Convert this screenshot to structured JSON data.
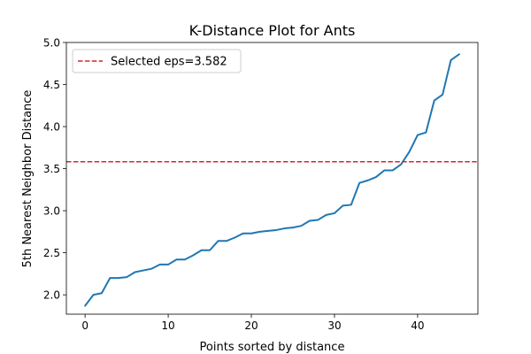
{
  "chart_data": {
    "type": "line",
    "title": "K-Distance Plot for Ants",
    "xlabel": "Points sorted by distance",
    "ylabel": "5th Nearest Neighbor Distance",
    "xlim": [
      -2.25,
      47.25
    ],
    "ylim": [
      1.77,
      5.0
    ],
    "xticks": [
      0,
      10,
      20,
      30,
      40
    ],
    "yticks": [
      2.0,
      2.5,
      3.0,
      3.5,
      4.0,
      4.5,
      5.0
    ],
    "xtick_labels": [
      "0",
      "10",
      "20",
      "30",
      "40"
    ],
    "ytick_labels": [
      "2.0",
      "2.5",
      "3.0",
      "3.5",
      "4.0",
      "4.5",
      "5.0"
    ],
    "grid": false,
    "legend_position": "upper-left",
    "series": [
      {
        "color": "#1f77b4",
        "x": [
          0,
          1,
          2,
          3,
          4,
          5,
          6,
          7,
          8,
          9,
          10,
          11,
          12,
          13,
          14,
          15,
          16,
          17,
          18,
          19,
          20,
          21,
          22,
          23,
          24,
          25,
          26,
          27,
          28,
          29,
          30,
          31,
          32,
          33,
          34,
          35,
          36,
          37,
          38,
          39,
          40,
          41,
          42,
          43,
          44,
          45
        ],
        "values": [
          1.87,
          2.0,
          2.02,
          2.2,
          2.2,
          2.21,
          2.27,
          2.29,
          2.31,
          2.36,
          2.36,
          2.42,
          2.42,
          2.47,
          2.53,
          2.53,
          2.64,
          2.64,
          2.68,
          2.73,
          2.73,
          2.75,
          2.76,
          2.77,
          2.79,
          2.8,
          2.82,
          2.88,
          2.89,
          2.95,
          2.97,
          3.06,
          3.07,
          3.33,
          3.36,
          3.4,
          3.48,
          3.48,
          3.55,
          3.7,
          3.9,
          3.93,
          4.31,
          4.38,
          4.79,
          4.86
        ]
      }
    ],
    "reference_line": {
      "orientation": "horizontal",
      "y": 3.582,
      "color": "#d62728",
      "style": "dashed",
      "label": "Selected eps=3.582"
    }
  }
}
